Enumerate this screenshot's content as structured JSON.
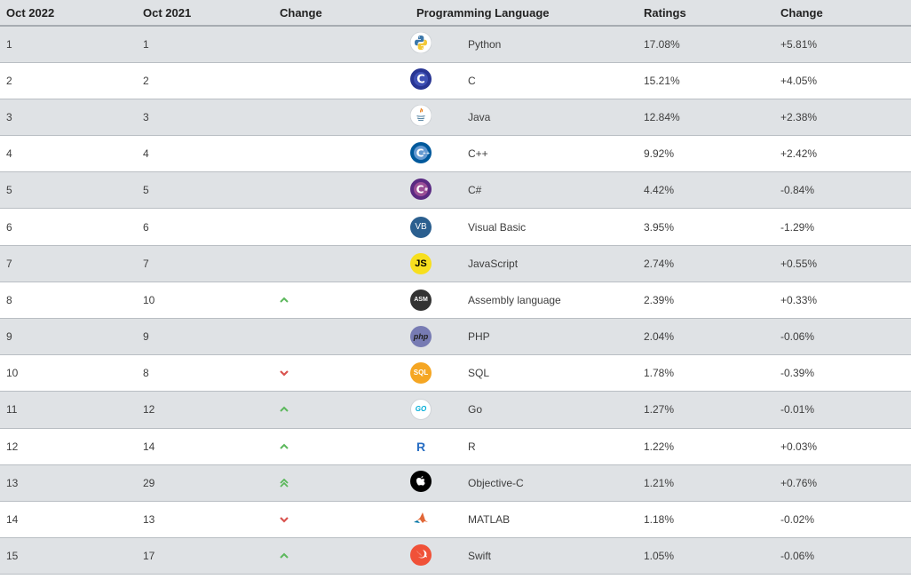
{
  "headers": {
    "rank_2022": "Oct 2022",
    "rank_2021": "Oct 2021",
    "change": "Change",
    "language": "Programming Language",
    "ratings": "Ratings",
    "ratings_change": "Change"
  },
  "colors": {
    "up": "#5cb85c",
    "down": "#d9534f"
  },
  "rows": [
    {
      "r22": "1",
      "r21": "1",
      "trend": "none",
      "icon": "python-logo-icon",
      "lang": "Python",
      "rating": "17.08%",
      "delta": "+5.81%"
    },
    {
      "r22": "2",
      "r21": "2",
      "trend": "none",
      "icon": "c-logo-icon",
      "lang": "C",
      "rating": "15.21%",
      "delta": "+4.05%"
    },
    {
      "r22": "3",
      "r21": "3",
      "trend": "none",
      "icon": "java-logo-icon",
      "lang": "Java",
      "rating": "12.84%",
      "delta": "+2.38%"
    },
    {
      "r22": "4",
      "r21": "4",
      "trend": "none",
      "icon": "cpp-logo-icon",
      "lang": "C++",
      "rating": "9.92%",
      "delta": "+2.42%"
    },
    {
      "r22": "5",
      "r21": "5",
      "trend": "none",
      "icon": "csharp-logo-icon",
      "lang": "C#",
      "rating": "4.42%",
      "delta": "-0.84%"
    },
    {
      "r22": "6",
      "r21": "6",
      "trend": "none",
      "icon": "visual-basic-logo-icon",
      "lang": "Visual Basic",
      "rating": "3.95%",
      "delta": "-1.29%",
      "logo_text": "VB"
    },
    {
      "r22": "7",
      "r21": "7",
      "trend": "none",
      "icon": "javascript-logo-icon",
      "lang": "JavaScript",
      "rating": "2.74%",
      "delta": "+0.55%",
      "logo_text": "JS"
    },
    {
      "r22": "8",
      "r21": "10",
      "trend": "up",
      "icon": "assembly-logo-icon",
      "lang": "Assembly language",
      "rating": "2.39%",
      "delta": "+0.33%",
      "logo_text": "ASM"
    },
    {
      "r22": "9",
      "r21": "9",
      "trend": "none",
      "icon": "php-logo-icon",
      "lang": "PHP",
      "rating": "2.04%",
      "delta": "-0.06%",
      "logo_text": "php"
    },
    {
      "r22": "10",
      "r21": "8",
      "trend": "down",
      "icon": "sql-logo-icon",
      "lang": "SQL",
      "rating": "1.78%",
      "delta": "-0.39%",
      "logo_text": "SQL"
    },
    {
      "r22": "11",
      "r21": "12",
      "trend": "up",
      "icon": "go-logo-icon",
      "lang": "Go",
      "rating": "1.27%",
      "delta": "-0.01%",
      "logo_text": "GO"
    },
    {
      "r22": "12",
      "r21": "14",
      "trend": "up",
      "icon": "r-logo-icon",
      "lang": "R",
      "rating": "1.22%",
      "delta": "+0.03%",
      "logo_text": "R"
    },
    {
      "r22": "13",
      "r21": "29",
      "trend": "upup",
      "icon": "objective-c-logo-icon",
      "lang": "Objective-C",
      "rating": "1.21%",
      "delta": "+0.76%"
    },
    {
      "r22": "14",
      "r21": "13",
      "trend": "down",
      "icon": "matlab-logo-icon",
      "lang": "MATLAB",
      "rating": "1.18%",
      "delta": "-0.02%"
    },
    {
      "r22": "15",
      "r21": "17",
      "trend": "up",
      "icon": "swift-logo-icon",
      "lang": "Swift",
      "rating": "1.05%",
      "delta": "-0.06%"
    }
  ]
}
